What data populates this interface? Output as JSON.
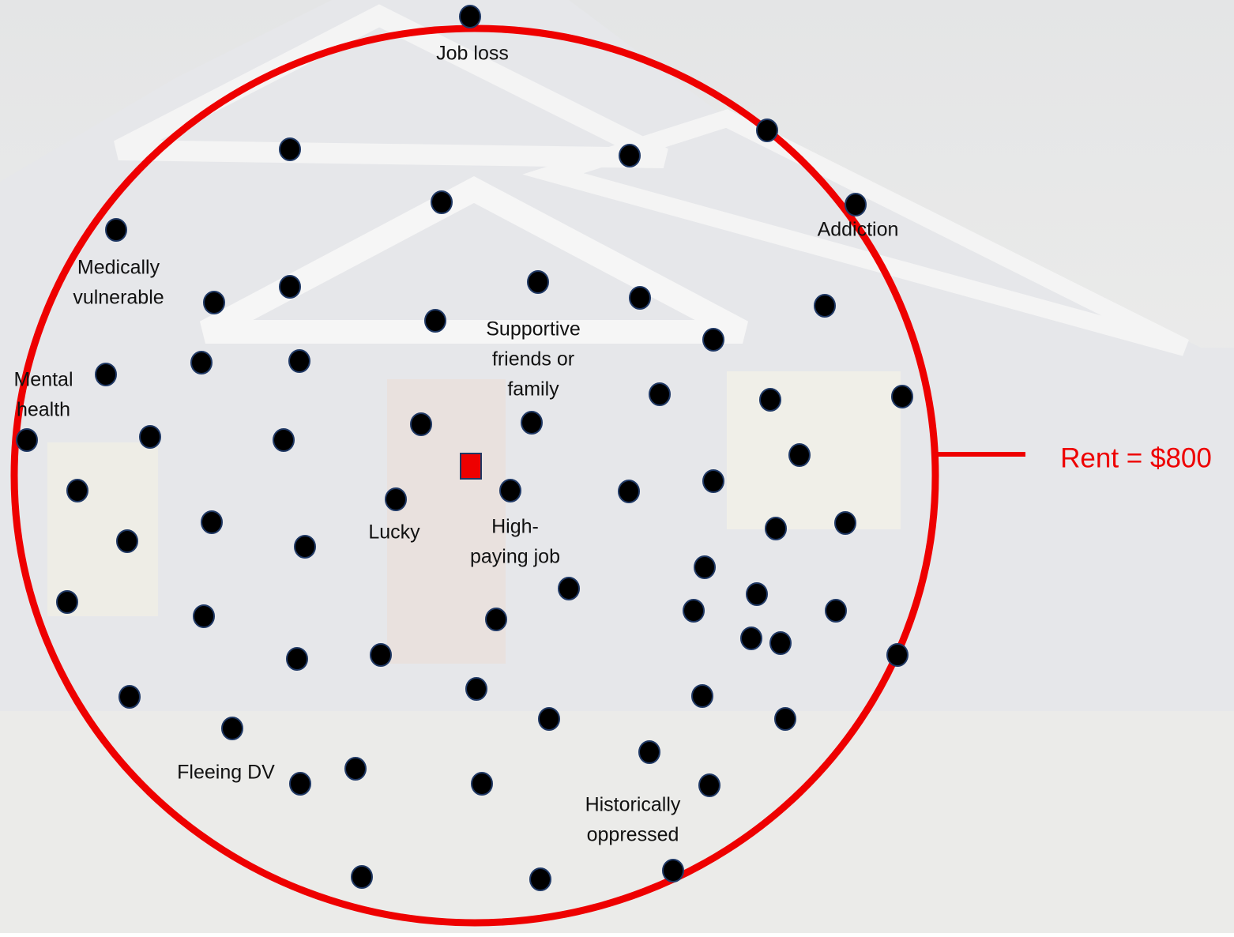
{
  "labels": [
    {
      "lines": [
        "Job loss"
      ]
    },
    {
      "lines": [
        "Addiction"
      ]
    },
    {
      "lines": [
        "Medically",
        "vulnerable"
      ]
    },
    {
      "lines": [
        "Mental",
        "health"
      ]
    },
    {
      "lines": [
        "Supportive",
        "friends or",
        "family"
      ]
    },
    {
      "lines": [
        "Lucky"
      ]
    },
    {
      "lines": [
        "High-",
        "paying job"
      ]
    },
    {
      "lines": [
        "Fleeing DV"
      ]
    },
    {
      "lines": [
        "Historically",
        "oppressed"
      ]
    }
  ],
  "rent_label": "Rent = $800"
}
